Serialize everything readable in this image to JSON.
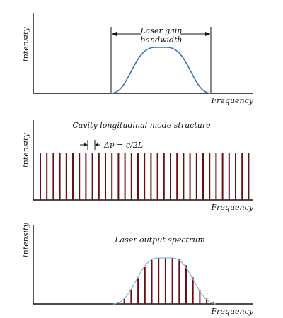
{
  "panel1": {
    "y_label": "Intensity",
    "x_label": "Frequency",
    "annotation_line1": "Laser gain",
    "annotation_line2": "bandwidth",
    "curve_color": "#3b6fb5"
  },
  "panel2": {
    "y_label": "Intensity",
    "x_label": "Frequency",
    "title": "Cavity longitudinal mode structure",
    "spacing_label": "Δν = c/2L",
    "mode_color": "#6b0f14",
    "mode_count": 33
  },
  "panel3": {
    "y_label": "Intensity",
    "x_label": "Frequency",
    "title": "Laser output spectrum",
    "mode_color": "#6b0f14",
    "envelope_color": "#79a8c8",
    "mode_heights": [
      0.03,
      0.12,
      0.3,
      0.55,
      0.8,
      0.96,
      1.0,
      1.0,
      1.0,
      0.97,
      0.84,
      0.58,
      0.3,
      0.12,
      0.03
    ]
  }
}
